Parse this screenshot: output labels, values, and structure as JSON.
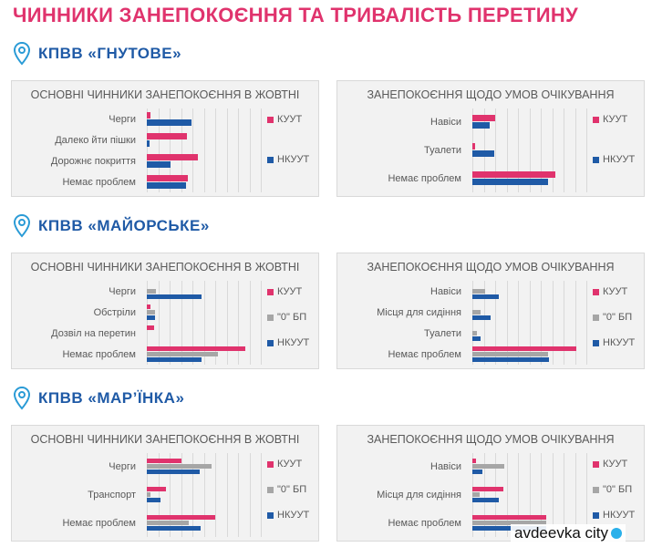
{
  "title": "ЧИННИКИ ЗАНЕПОКОЄННЯ ТА ТРИВАЛІСТЬ ПЕРЕТИНУ",
  "sections": [
    "КПВВ «ГНУТОВЕ»",
    "КПВВ «МАЙОРСЬКЕ»",
    "КПВВ «МАР’ЇНКА»"
  ],
  "watermark": "avdeevka city",
  "colors": {
    "КУУТ": "#e0336d",
    "\"0\" БП": "#a6a6a6",
    "НКУУТ": "#1f5aa6"
  },
  "chart_data": [
    {
      "type": "bar",
      "title": "ОСНОВНІ ЧИННИКИ ЗАНЕПОКОЄННЯ В ЖОВТНІ",
      "categories": [
        "Черги",
        "Далеко йти пішки",
        "Дорожнє покриття",
        "Немає проблем"
      ],
      "series": [
        {
          "name": "КУУТ",
          "values": [
            3,
            35,
            45,
            36
          ]
        },
        {
          "name": "НКУУТ",
          "values": [
            39,
            2,
            21,
            34
          ]
        }
      ],
      "xlim": [
        0,
        100
      ],
      "grid": true,
      "legend": "right"
    },
    {
      "type": "bar",
      "title": "ЗАНЕПОКОЄННЯ ЩОДО УМОВ ОЧІКУВАННЯ",
      "categories": [
        "Навіси",
        "Туалети",
        "Немає проблем"
      ],
      "series": [
        {
          "name": "КУУТ",
          "values": [
            20,
            2,
            73
          ]
        },
        {
          "name": "НКУУТ",
          "values": [
            15,
            19,
            66
          ]
        }
      ],
      "xlim": [
        0,
        100
      ],
      "grid": true,
      "legend": "right"
    },
    {
      "type": "bar",
      "title": "ОСНОВНІ ЧИННИКИ ЗАНЕПОКОЄННЯ В ЖОВТНІ",
      "categories": [
        "Черги",
        "Обстріли",
        "Дозвіл на перетин",
        "Немає проблем"
      ],
      "series": [
        {
          "name": "КУУТ",
          "values": [
            0,
            3,
            6,
            86
          ]
        },
        {
          "name": "\"0\" БП",
          "values": [
            8,
            7,
            0,
            62
          ]
        },
        {
          "name": "НКУУТ",
          "values": [
            48,
            7,
            0,
            48
          ]
        }
      ],
      "xlim": [
        0,
        100
      ],
      "grid": true,
      "legend": "right"
    },
    {
      "type": "bar",
      "title": "ЗАНЕПОКОЄННЯ ЩОДО УМОВ ОЧІКУВАННЯ",
      "categories": [
        "Навіси",
        "Місця для сидіння",
        "Туалети",
        "Немає проблем"
      ],
      "series": [
        {
          "name": "КУУТ",
          "values": [
            0,
            0,
            0,
            91
          ]
        },
        {
          "name": "НКУУТ",
          "values": [
            11,
            7,
            4,
            66
          ]
        },
        {
          "name": "\"0\" БП",
          "values": [
            23,
            16,
            7,
            67
          ]
        }
      ],
      "legend_labels": [
        "КУУТ",
        "\"0\" БП",
        "НКУУТ"
      ],
      "xlim": [
        0,
        100
      ],
      "grid": true,
      "legend": "right"
    },
    {
      "type": "bar",
      "title": "ОСНОВНІ ЧИННИКИ ЗАНЕПОКОЄННЯ В ЖОВТНІ",
      "categories": [
        "Черги",
        "Транспорт",
        "Немає проблем"
      ],
      "series": [
        {
          "name": "КУУТ",
          "values": [
            30,
            17,
            60
          ]
        },
        {
          "name": "\"0\" БП",
          "values": [
            57,
            3,
            37
          ]
        },
        {
          "name": "НКУУТ",
          "values": [
            46,
            12,
            47
          ]
        }
      ],
      "xlim": [
        0,
        100
      ],
      "grid": true,
      "legend": "right"
    },
    {
      "type": "bar",
      "title": "ЗАНЕПОКОЄННЯ ЩОДО УМОВ ОЧІКУВАННЯ",
      "categories": [
        "Навіси",
        "Місця для сидіння",
        "Немає проблем"
      ],
      "series": [
        {
          "name": "КУУТ",
          "values": [
            3,
            27,
            65
          ]
        },
        {
          "name": "НКУУТ",
          "values": [
            28,
            6,
            65
          ]
        },
        {
          "name": "\"0\" БП",
          "values": [
            9,
            23,
            65
          ]
        }
      ],
      "legend_labels": [
        "КУУТ",
        "\"0\" БП",
        "НКУУТ"
      ],
      "xlim": [
        0,
        100
      ],
      "grid": true,
      "legend": "right"
    }
  ]
}
